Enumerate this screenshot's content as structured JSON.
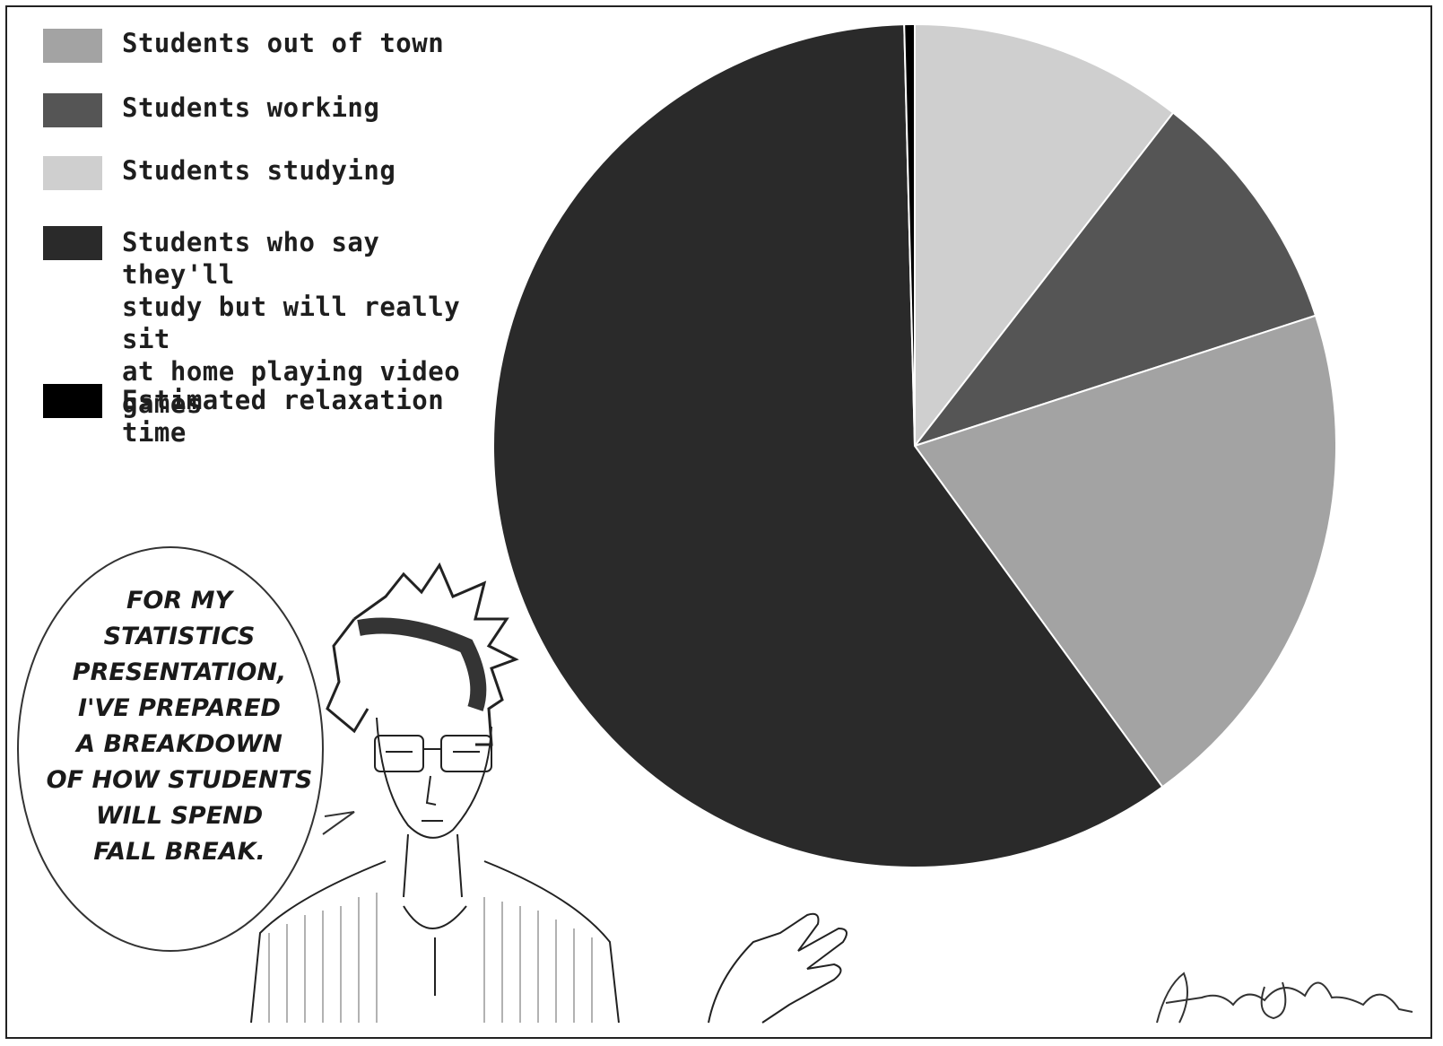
{
  "chart_data": {
    "type": "pie",
    "title": "",
    "legend_position": "top-left",
    "slices": [
      {
        "label": "Students studying",
        "value": 10.5,
        "color": "#cfcfcf"
      },
      {
        "label": "Students working",
        "value": 9.5,
        "color": "#555555"
      },
      {
        "label": "Students out of town",
        "value": 20.0,
        "color": "#a3a3a3"
      },
      {
        "label": "Students who say they'll\nstudy but will really sit\nat home playing video\ngames",
        "value": 59.6,
        "color": "#2a2a2a"
      },
      {
        "label": "Estimated relaxation\ntime",
        "value": 0.4,
        "color": "#000000"
      }
    ],
    "legend": [
      {
        "label": "Students out of town",
        "color": "#a3a3a3"
      },
      {
        "label": "Students working",
        "color": "#555555"
      },
      {
        "label": "Students studying",
        "color": "#cfcfcf"
      },
      {
        "label": "Students who say they'll\nstudy but will really sit\nat home playing video\ngames",
        "color": "#2a2a2a"
      },
      {
        "label": "Estimated relaxation\ntime",
        "color": "#000000"
      }
    ]
  },
  "speech_bubble": {
    "text": "FOR MY\nSTATISTICS\nPRESENTATION,\nI'VE PREPARED\nA BREAKDOWN\nOF HOW STUDENTS\nWILL SPEND\nFALL BREAK."
  },
  "signature": {
    "text": "Aaron Gabriel"
  }
}
